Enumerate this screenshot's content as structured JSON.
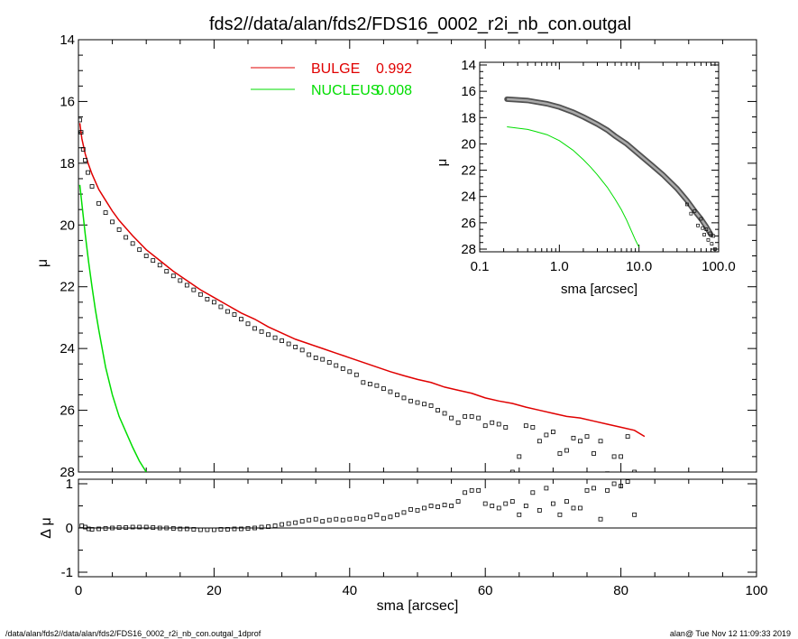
{
  "title": "fds2//data/alan/fds2/FDS16_0002_r2i_nb_con.outgal",
  "footer": {
    "left": "/data/alan/fds2//data/alan/fds2/FDS16_0002_r2i_nb_con.outgal_1dprof",
    "right": "alan@  Tue Nov 12 11:09:33 2019"
  },
  "colors": {
    "bulge": "#e00000",
    "nucleus": "#00dd00",
    "data": "#000000",
    "axes": "#000000"
  },
  "chart_data": [
    {
      "id": "main",
      "type": "scatter",
      "xlabel": "",
      "ylabel": "μ",
      "xlim": [
        0,
        100
      ],
      "ylim": [
        28,
        14
      ],
      "y_inverted": true,
      "xticks": [],
      "yticks": [
        14,
        16,
        18,
        20,
        22,
        24,
        26,
        28
      ],
      "legend": {
        "placement": "top-center",
        "entries": [
          {
            "label": "BULGE",
            "value": "0.992",
            "color": "#e00000"
          },
          {
            "label": "NUCLEUS",
            "value": "0.008",
            "color": "#00dd00"
          }
        ]
      },
      "series": [
        {
          "name": "BULGE",
          "kind": "line",
          "color": "#e00000",
          "x": [
            0.2,
            0.5,
            1,
            1.5,
            2,
            3,
            4,
            5,
            6,
            7,
            8,
            10,
            12,
            14,
            16,
            18,
            20,
            22,
            24,
            26,
            28,
            30,
            32,
            34,
            36,
            38,
            40,
            42,
            44,
            46,
            48,
            50,
            52,
            54,
            56,
            58,
            60,
            62,
            64,
            66,
            68,
            70,
            72,
            74,
            76,
            78,
            80,
            82,
            83.5
          ],
          "y": [
            16.7,
            17.2,
            17.7,
            18.05,
            18.35,
            18.85,
            19.2,
            19.55,
            19.85,
            20.1,
            20.35,
            20.8,
            21.15,
            21.5,
            21.8,
            22.1,
            22.35,
            22.6,
            22.85,
            23.05,
            23.3,
            23.5,
            23.7,
            23.85,
            24.0,
            24.15,
            24.3,
            24.45,
            24.6,
            24.75,
            24.88,
            25.0,
            25.1,
            25.25,
            25.35,
            25.45,
            25.6,
            25.7,
            25.78,
            25.9,
            26.0,
            26.1,
            26.2,
            26.25,
            26.35,
            26.45,
            26.55,
            26.65,
            26.85
          ]
        },
        {
          "name": "NUCLEUS",
          "kind": "line",
          "color": "#00dd00",
          "x": [
            0.2,
            0.5,
            1,
            1.5,
            2,
            2.5,
            3,
            4,
            5,
            6,
            7,
            8,
            9,
            10
          ],
          "y": [
            18.7,
            19.3,
            20.3,
            21.2,
            22.0,
            22.75,
            23.4,
            24.6,
            25.5,
            26.2,
            26.7,
            27.2,
            27.65,
            28.0
          ]
        },
        {
          "name": "data",
          "kind": "points",
          "color": "#000000",
          "x": [
            0.2,
            0.4,
            0.7,
            1,
            1.4,
            2,
            3,
            4,
            5,
            6,
            7,
            8,
            9,
            10,
            11,
            12,
            13,
            14,
            15,
            16,
            17,
            18,
            19,
            20,
            21,
            22,
            23,
            24,
            25,
            26,
            27,
            28,
            29,
            30,
            31,
            32,
            33,
            34,
            35,
            36,
            37,
            38,
            39,
            40,
            41,
            42,
            43,
            44,
            45,
            46,
            47,
            48,
            49,
            50,
            51,
            52,
            53,
            54,
            55,
            56,
            57,
            58,
            59,
            60,
            61,
            62,
            63,
            64,
            65,
            66,
            67,
            68,
            69,
            70,
            71,
            72,
            73,
            74,
            75,
            76,
            77,
            78,
            79,
            80,
            81,
            82,
            83
          ],
          "y": [
            16.6,
            17.0,
            17.55,
            17.9,
            18.3,
            18.75,
            19.3,
            19.6,
            19.9,
            20.15,
            20.4,
            20.6,
            20.8,
            21.0,
            21.15,
            21.3,
            21.5,
            21.65,
            21.8,
            21.95,
            22.1,
            22.25,
            22.4,
            22.5,
            22.65,
            22.8,
            22.9,
            23.05,
            23.2,
            23.35,
            23.45,
            23.55,
            23.65,
            23.75,
            23.85,
            23.95,
            24.05,
            24.2,
            24.3,
            24.35,
            24.45,
            24.55,
            24.65,
            24.75,
            24.85,
            25.1,
            25.15,
            25.2,
            25.3,
            25.4,
            25.5,
            25.6,
            25.7,
            25.75,
            25.8,
            25.85,
            26.0,
            26.1,
            26.25,
            26.4,
            26.2,
            26.2,
            26.25,
            26.5,
            26.4,
            26.45,
            26.55,
            28.0,
            27.5,
            26.5,
            26.55,
            27.0,
            26.8,
            26.7,
            27.4,
            27.3,
            26.9,
            27.0,
            26.85,
            27.4,
            27.0,
            28.05,
            27.5,
            27.5,
            26.85,
            28.0,
            28.3
          ]
        }
      ]
    },
    {
      "id": "residual",
      "type": "scatter",
      "xlabel": "sma [arcsec]",
      "ylabel": "Δ μ",
      "xlim": [
        0,
        100
      ],
      "ylim": [
        -1,
        1
      ],
      "xticks": [
        0,
        20,
        40,
        60,
        80,
        100
      ],
      "yticks": [
        -1,
        0,
        1
      ],
      "series": [
        {
          "name": "residual",
          "kind": "points",
          "color": "#000000",
          "x": [
            0.5,
            1,
            1.5,
            2,
            3,
            4,
            5,
            6,
            7,
            8,
            9,
            10,
            11,
            12,
            13,
            14,
            15,
            16,
            17,
            18,
            19,
            20,
            21,
            22,
            23,
            24,
            25,
            26,
            27,
            28,
            29,
            30,
            31,
            32,
            33,
            34,
            35,
            36,
            37,
            38,
            39,
            40,
            41,
            42,
            43,
            44,
            45,
            46,
            47,
            48,
            49,
            50,
            51,
            52,
            53,
            54,
            55,
            56,
            57,
            58,
            59,
            60,
            61,
            62,
            63,
            64,
            65,
            66,
            67,
            68,
            69,
            70,
            71,
            72,
            73,
            74,
            75,
            76,
            77,
            78,
            79,
            80,
            81,
            82
          ],
          "y": [
            0.05,
            0.02,
            -0.02,
            -0.03,
            -0.02,
            -0.01,
            0.0,
            0.01,
            0.01,
            0.02,
            0.02,
            0.02,
            0.01,
            0.0,
            0.0,
            -0.01,
            -0.02,
            -0.02,
            -0.03,
            -0.04,
            -0.04,
            -0.04,
            -0.03,
            -0.03,
            -0.02,
            -0.02,
            -0.01,
            0.0,
            0.02,
            0.03,
            0.05,
            0.08,
            0.1,
            0.12,
            0.15,
            0.18,
            0.2,
            0.15,
            0.18,
            0.2,
            0.18,
            0.2,
            0.22,
            0.2,
            0.25,
            0.3,
            0.22,
            0.25,
            0.3,
            0.35,
            0.42,
            0.4,
            0.45,
            0.5,
            0.48,
            0.52,
            0.5,
            0.6,
            0.8,
            0.85,
            0.85,
            0.55,
            0.5,
            0.45,
            0.55,
            0.6,
            0.3,
            0.5,
            0.8,
            0.4,
            0.9,
            0.55,
            0.3,
            0.6,
            0.45,
            0.45,
            0.85,
            0.9,
            0.2,
            0.85,
            1.0,
            0.95,
            1.05,
            0.3
          ]
        }
      ]
    },
    {
      "id": "inset",
      "type": "scatter",
      "x_scale": "log",
      "xlabel": "sma [arcsec]",
      "ylabel": "μ",
      "xlim": [
        0.1,
        100
      ],
      "ylim": [
        28,
        14
      ],
      "y_inverted": true,
      "xtick_labels": [
        "0.1",
        "1.0",
        "10.0",
        "100.0"
      ],
      "xtick_values": [
        0.1,
        1,
        10,
        100
      ],
      "yticks": [
        14,
        16,
        18,
        20,
        22,
        24,
        26,
        28
      ],
      "series": [
        {
          "name": "BULGE",
          "kind": "band",
          "color": "#555555",
          "x": [
            0.22,
            0.3,
            0.4,
            0.5,
            0.7,
            1,
            1.5,
            2,
            3,
            4,
            5,
            7,
            10,
            15,
            20,
            30,
            40,
            50,
            60,
            70,
            80
          ],
          "y": [
            16.6,
            16.65,
            16.7,
            16.8,
            16.95,
            17.2,
            17.6,
            17.95,
            18.5,
            18.95,
            19.4,
            20.0,
            20.8,
            21.7,
            22.35,
            23.4,
            24.3,
            25.1,
            25.7,
            26.3,
            26.9
          ]
        },
        {
          "name": "NUCLEUS",
          "kind": "line",
          "color": "#00dd00",
          "x": [
            0.22,
            0.3,
            0.4,
            0.5,
            0.7,
            1,
            1.5,
            2,
            2.5,
            3,
            4,
            5,
            6,
            7,
            8,
            9,
            10
          ],
          "y": [
            18.7,
            18.8,
            18.9,
            19.05,
            19.3,
            19.75,
            20.5,
            21.2,
            21.8,
            22.35,
            23.3,
            24.2,
            25.0,
            25.8,
            26.6,
            27.3,
            27.85
          ]
        },
        {
          "name": "outer-points",
          "kind": "points",
          "color": "#000000",
          "x": [
            40,
            45,
            50,
            55,
            60,
            63,
            66,
            70,
            74,
            78,
            82,
            86,
            90
          ],
          "y": [
            24.6,
            25.3,
            25.1,
            26.2,
            25.7,
            26.4,
            26.9,
            26.5,
            27.3,
            26.8,
            27.6,
            27.0,
            28.0
          ]
        }
      ]
    }
  ]
}
